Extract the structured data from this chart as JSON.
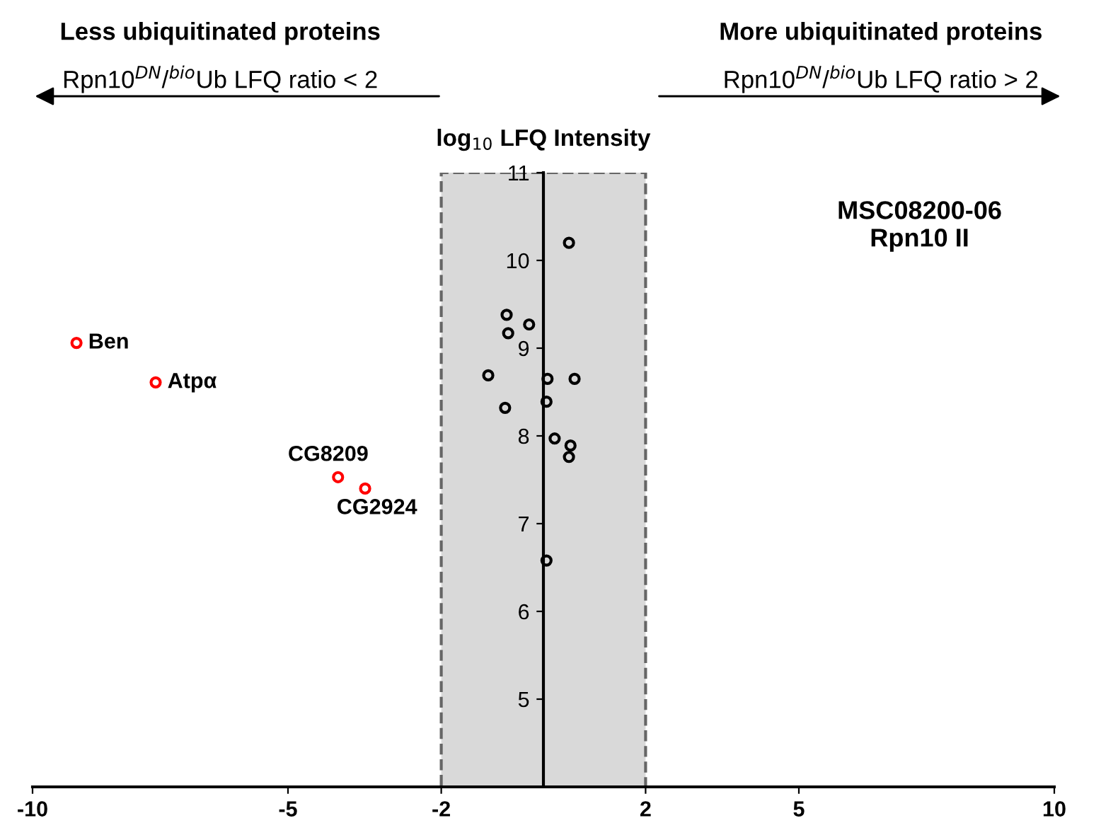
{
  "chart_data": {
    "type": "scatter",
    "title": "MSC08200-06\nRpn10 II",
    "ylabel": "log$_{10}$ LFQ Intensity",
    "annotations": [
      "Less ubiquitinated proteins",
      "Rpn10$^{DN}$/$^{bio}$Ub LFQ ratio < 2",
      "More ubiquitinated proteins",
      "Rpn10$^{DN}$/$^{bio}$Ub LFQ ratio > 2",
      {
        "text": "Ben",
        "x": -9.14,
        "y": 9.06
      },
      {
        "text": "Atpα",
        "x": -7.59,
        "y": 8.61
      },
      {
        "text": "CG8209",
        "x": -4.02,
        "y": 7.53
      },
      {
        "text": "CG2924",
        "x": -3.49,
        "y": 7.4
      }
    ],
    "series": [
      {
        "color": "#000000",
        "x": [
          0.5,
          -0.72,
          -0.28,
          -0.69,
          -1.08,
          0.08,
          0.61,
          0.06,
          -0.75,
          0.22,
          0.53,
          0.5,
          0.06
        ],
        "values": [
          10.2,
          9.38,
          9.27,
          9.17,
          8.69,
          8.65,
          8.65,
          8.39,
          8.32,
          7.97,
          7.89,
          7.76,
          6.58
        ]
      },
      {
        "color": "#ff0000",
        "x": [
          -9.14,
          -7.59,
          -4.02,
          -3.49
        ],
        "values": [
          9.06,
          8.61,
          7.53,
          7.4
        ]
      }
    ],
    "marker": "circle",
    "xlim": [
      -10,
      10
    ],
    "xticks": [
      -10,
      -5,
      -2,
      2,
      5,
      10
    ],
    "ylim": [
      4,
      11
    ],
    "yticks": [
      5,
      6,
      7,
      8,
      9,
      10,
      11
    ],
    "bands": [
      {
        "axis": "x",
        "from": -2,
        "to": 2,
        "color": "#d9d9d9"
      }
    ]
  }
}
